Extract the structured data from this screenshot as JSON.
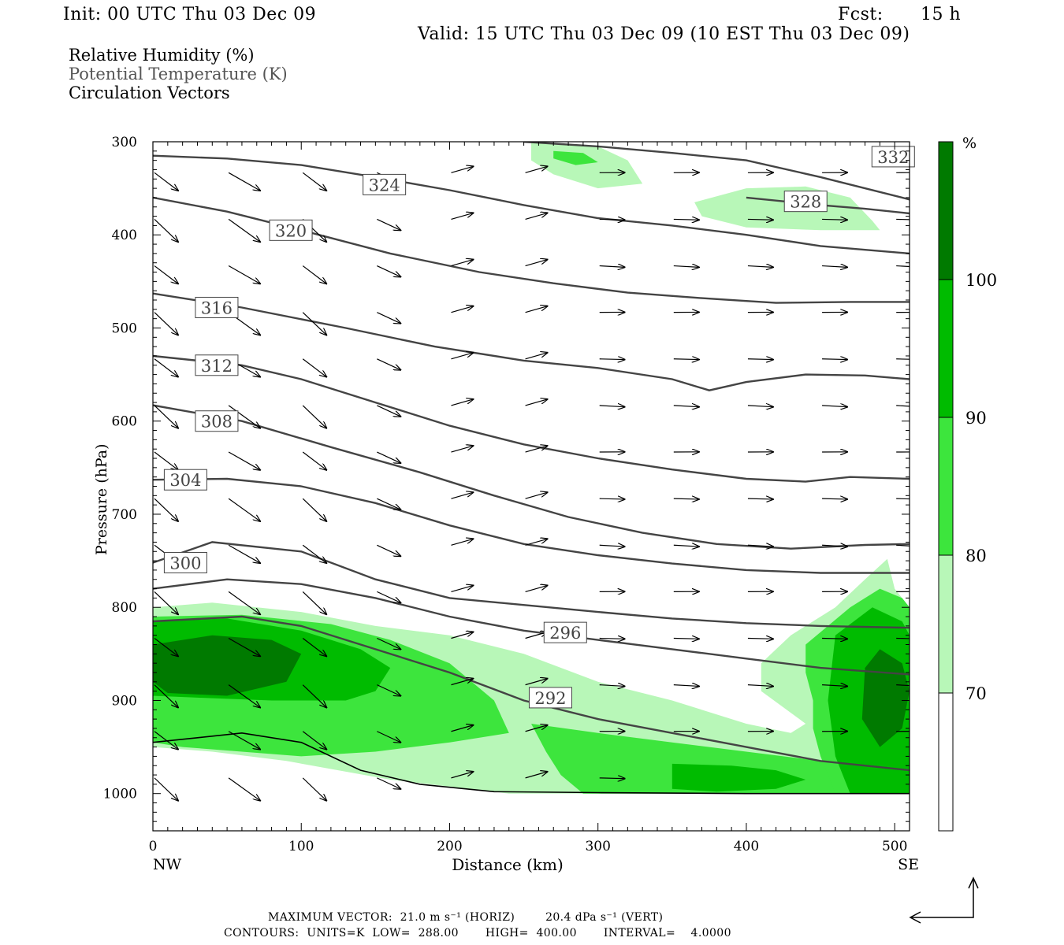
{
  "header": {
    "init": "Init: 00 UTC Thu 03 Dec 09",
    "fcst_label": "Fcst:",
    "fcst_value": "15 h",
    "valid": "Valid: 15 UTC Thu 03 Dec 09 (10 EST Thu 03 Dec 09)"
  },
  "legend": {
    "line1": "Relative Humidity (%)",
    "line2": "Potential Temperature (K)",
    "line3": "Circulation Vectors"
  },
  "footer": {
    "max_vector": "MAXIMUM VECTOR:  21.0 m s⁻¹ (HORIZ)        20.4 dPa s⁻¹ (VERT)",
    "contours": "CONTOURS:  UNITS=K  LOW=  288.00       HIGH=  400.00       INTERVAL=    4.0000"
  },
  "chart_data": {
    "type": "contour",
    "xlabel": "Distance (km)",
    "ylabel": "Pressure (hPa)",
    "x_ticks": [
      0,
      100,
      200,
      300,
      400,
      500
    ],
    "y_ticks": [
      300,
      400,
      500,
      600,
      700,
      800,
      900,
      1000
    ],
    "xlim": [
      0,
      510
    ],
    "ylim": [
      300,
      1040
    ],
    "x_left_label": "NW",
    "x_right_label": "SE",
    "colorbar": {
      "unit": "%",
      "levels": [
        70,
        80,
        90,
        100
      ],
      "colors": [
        "#ffffff",
        "#b8f7b8",
        "#3de53d",
        "#00bb00",
        "#007a00"
      ]
    },
    "colors": {
      "rh70": "#b8f7b8",
      "rh80": "#3de53d",
      "rh90": "#00bb00",
      "rh100": "#007a00",
      "theta": "#444444",
      "vector": "#000000"
    },
    "theta_contours": [
      {
        "label": "300",
        "points": [
          [
            0,
            752
          ],
          [
            40,
            730
          ],
          [
            100,
            740
          ],
          [
            150,
            770
          ],
          [
            200,
            790
          ],
          [
            300,
            805
          ],
          [
            350,
            812
          ],
          [
            400,
            817
          ],
          [
            450,
            820
          ],
          [
            510,
            822
          ]
        ],
        "label_at": [
          22,
          752
        ]
      },
      {
        "label": "304",
        "points": [
          [
            0,
            663
          ],
          [
            50,
            662
          ],
          [
            100,
            670
          ],
          [
            150,
            688
          ],
          [
            200,
            712
          ],
          [
            250,
            732
          ],
          [
            300,
            744
          ],
          [
            350,
            753
          ],
          [
            400,
            760
          ],
          [
            450,
            763
          ],
          [
            510,
            763
          ]
        ],
        "label_at": [
          22,
          663
        ]
      },
      {
        "label": "308",
        "points": [
          [
            0,
            583
          ],
          [
            60,
            600
          ],
          [
            120,
            628
          ],
          [
            180,
            655
          ],
          [
            230,
            680
          ],
          [
            280,
            703
          ],
          [
            330,
            720
          ],
          [
            380,
            732
          ],
          [
            430,
            737
          ],
          [
            480,
            733
          ],
          [
            510,
            732
          ]
        ],
        "label_at": [
          43,
          600
        ]
      },
      {
        "label": "312",
        "points": [
          [
            0,
            530
          ],
          [
            60,
            540
          ],
          [
            100,
            555
          ],
          [
            150,
            580
          ],
          [
            200,
            605
          ],
          [
            250,
            625
          ],
          [
            300,
            640
          ],
          [
            350,
            652
          ],
          [
            400,
            662
          ],
          [
            440,
            665
          ],
          [
            470,
            660
          ],
          [
            510,
            662
          ]
        ],
        "label_at": [
          43,
          540
        ]
      },
      {
        "label": "316",
        "points": [
          [
            0,
            463
          ],
          [
            60,
            478
          ],
          [
            130,
            500
          ],
          [
            190,
            520
          ],
          [
            250,
            535
          ],
          [
            300,
            543
          ],
          [
            350,
            555
          ],
          [
            375,
            567
          ],
          [
            400,
            558
          ],
          [
            440,
            550
          ],
          [
            480,
            551
          ],
          [
            510,
            555
          ]
        ],
        "label_at": [
          43,
          478
        ]
      },
      {
        "label": "320",
        "points": [
          [
            0,
            360
          ],
          [
            50,
            375
          ],
          [
            100,
            395
          ],
          [
            160,
            420
          ],
          [
            220,
            440
          ],
          [
            270,
            452
          ],
          [
            320,
            462
          ],
          [
            370,
            468
          ],
          [
            420,
            473
          ],
          [
            470,
            472
          ],
          [
            510,
            472
          ]
        ],
        "label_at": [
          93,
          395
        ]
      },
      {
        "label": "324",
        "points": [
          [
            0,
            315
          ],
          [
            50,
            318
          ],
          [
            100,
            325
          ],
          [
            150,
            338
          ],
          [
            200,
            352
          ],
          [
            250,
            368
          ],
          [
            300,
            382
          ],
          [
            350,
            390
          ],
          [
            400,
            400
          ],
          [
            450,
            412
          ],
          [
            510,
            420
          ]
        ],
        "label_at": [
          156,
          346
        ]
      },
      {
        "label": "328",
        "points": [
          [
            400,
            360
          ],
          [
            450,
            368
          ],
          [
            480,
            372
          ],
          [
            510,
            377
          ]
        ],
        "label_at": [
          440,
          364
        ]
      },
      {
        "label": "332",
        "points": [
          [
            250,
            300
          ],
          [
            300,
            305
          ],
          [
            350,
            312
          ],
          [
            400,
            320
          ],
          [
            450,
            338
          ],
          [
            510,
            362
          ]
        ],
        "label_at": [
          499,
          316
        ]
      },
      {
        "label": "296",
        "points": [
          [
            0,
            780
          ],
          [
            50,
            770
          ],
          [
            100,
            775
          ],
          [
            150,
            790
          ],
          [
            200,
            810
          ],
          [
            250,
            825
          ],
          [
            300,
            835
          ],
          [
            350,
            845
          ],
          [
            400,
            855
          ],
          [
            450,
            865
          ],
          [
            510,
            872
          ]
        ],
        "label_at": [
          278,
          827
        ]
      },
      {
        "label": "292",
        "points": [
          [
            0,
            815
          ],
          [
            60,
            810
          ],
          [
            100,
            820
          ],
          [
            150,
            845
          ],
          [
            200,
            870
          ],
          [
            250,
            900
          ],
          [
            300,
            920
          ],
          [
            350,
            935
          ],
          [
            400,
            950
          ],
          [
            450,
            965
          ],
          [
            510,
            975
          ]
        ],
        "label_at": [
          268,
          897
        ]
      }
    ]
  }
}
